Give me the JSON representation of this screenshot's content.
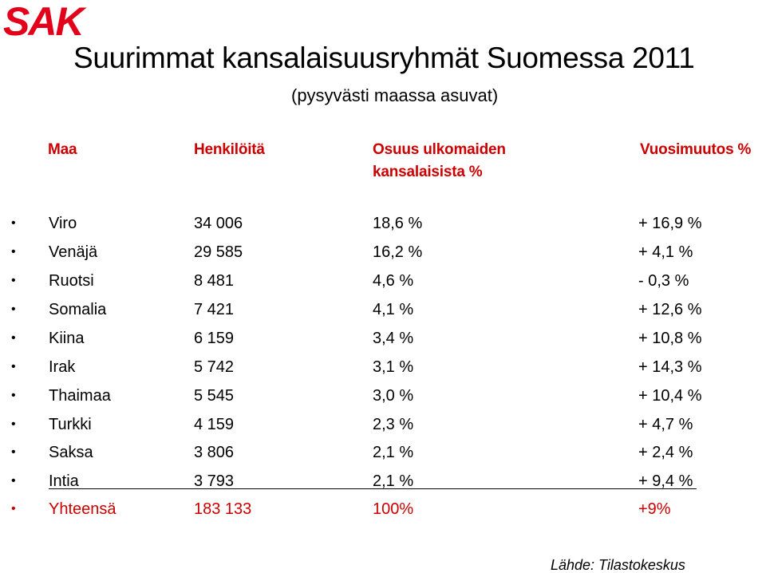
{
  "logo": {
    "text": "SAK",
    "color": "#e2001a"
  },
  "title": "Suurimmat kansalaisuusryhmät Suomessa 2011",
  "subtitle": "(pysyvästi maassa asuvat)",
  "headers": {
    "country": "Maa",
    "persons": "Henkilöitä",
    "share_line1": "Osuus ulkomaiden",
    "share_line2": "kansalaisista %",
    "change": "Vuosimuutos %"
  },
  "colors": {
    "header": "#cc0000",
    "total": "#cc0000",
    "logo": "#e2001a"
  },
  "rows": [
    {
      "country": "Viro",
      "persons": "34 006",
      "share": "18,6 %",
      "change": "+ 16,9 %"
    },
    {
      "country": "Venäjä",
      "persons": "29 585",
      "share": "16,2 %",
      "change": "+ 4,1 %"
    },
    {
      "country": "Ruotsi",
      "persons": "8 481",
      "share": "4,6 %",
      "change": "- 0,3 %"
    },
    {
      "country": "Somalia",
      "persons": "7 421",
      "share": "4,1 %",
      "change": "+ 12,6 %"
    },
    {
      "country": "Kiina",
      "persons": "6 159",
      "share": "3,4 %",
      "change": "+ 10,8 %"
    },
    {
      "country": "Irak",
      "persons": "5 742",
      "share": "3,1 %",
      "change": "+ 14,3 %"
    },
    {
      "country": "Thaimaa",
      "persons": "5 545",
      "share": "3,0 %",
      "change": "+ 10,4 %"
    },
    {
      "country": "Turkki",
      "persons": "4 159",
      "share": "2,3 %",
      "change": "+ 4,7 %"
    },
    {
      "country": "Saksa",
      "persons": "3 806",
      "share": "2,1 %",
      "change": "+ 2,4 %"
    },
    {
      "country": "Intia",
      "persons": "3 793",
      "share": "2,1 %",
      "change": "+ 9,4 %"
    }
  ],
  "total": {
    "country": "Yhteensä",
    "persons": "183 133",
    "share": "100%",
    "change": "+9%"
  },
  "source": "Lähde: Tilastokeskus"
}
